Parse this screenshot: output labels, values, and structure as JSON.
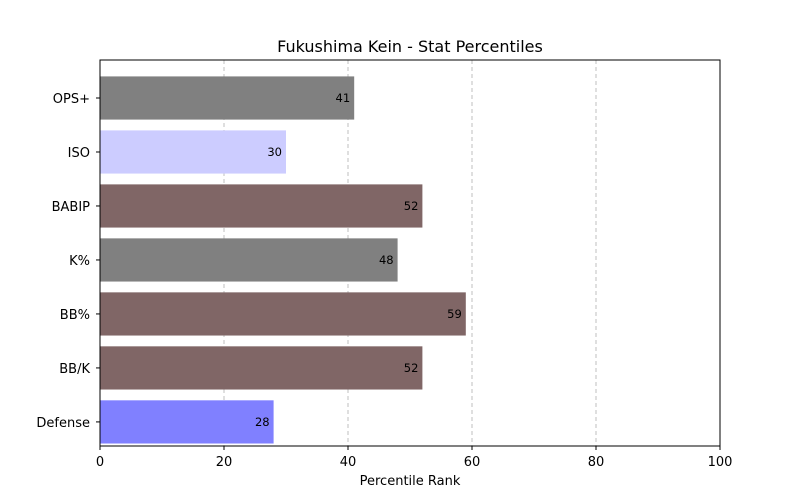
{
  "chart_data": {
    "type": "bar",
    "orientation": "horizontal",
    "title": "Fukushima Kein - Stat Percentiles",
    "xlabel": "Percentile Rank",
    "ylabel": "",
    "xlim": [
      0,
      100
    ],
    "xticks": [
      0,
      20,
      40,
      60,
      80,
      100
    ],
    "grid": {
      "x": true,
      "y": false,
      "style": "dashed"
    },
    "categories": [
      "OPS+",
      "ISO",
      "BABIP",
      "K%",
      "BB%",
      "BB/K",
      "Defense"
    ],
    "values": [
      41,
      30,
      52,
      48,
      59,
      52,
      28
    ],
    "colors": [
      "#808080",
      "#ccccff",
      "#806666",
      "#808080",
      "#806666",
      "#806666",
      "#8080ff"
    ]
  }
}
